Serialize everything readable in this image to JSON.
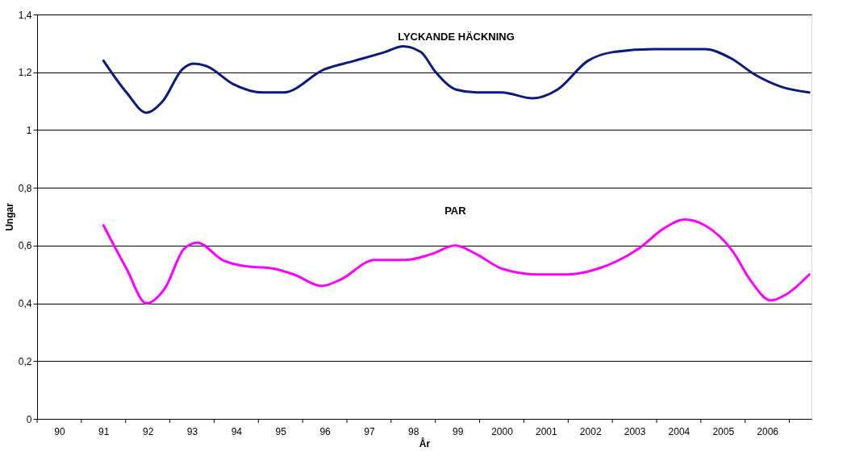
{
  "chart_data": {
    "type": "line",
    "xlabel": "År",
    "ylabel": "Ungar",
    "xlim": [
      1989.5,
      2007
    ],
    "ylim": [
      0,
      1.4
    ],
    "xticks": [
      {
        "value": 1989.5,
        "label": null
      },
      {
        "value": 1990,
        "label": "90"
      },
      {
        "value": 1990.5,
        "label": null
      },
      {
        "value": 1991,
        "label": "91"
      },
      {
        "value": 1991.5,
        "label": null
      },
      {
        "value": 1992,
        "label": "92"
      },
      {
        "value": 1992.5,
        "label": null
      },
      {
        "value": 1993,
        "label": "93"
      },
      {
        "value": 1993.5,
        "label": null
      },
      {
        "value": 1994,
        "label": "94"
      },
      {
        "value": 1994.5,
        "label": null
      },
      {
        "value": 1995,
        "label": "95"
      },
      {
        "value": 1995.5,
        "label": null
      },
      {
        "value": 1996,
        "label": "96"
      },
      {
        "value": 1996.5,
        "label": null
      },
      {
        "value": 1997,
        "label": "97"
      },
      {
        "value": 1997.5,
        "label": null
      },
      {
        "value": 1998,
        "label": "98"
      },
      {
        "value": 1998.5,
        "label": null
      },
      {
        "value": 1999,
        "label": "99"
      },
      {
        "value": 1999.5,
        "label": null
      },
      2000,
      {
        "value": 2000.5,
        "label": null
      },
      2001,
      {
        "value": 2001.5,
        "label": null
      },
      2002,
      {
        "value": 2002.5,
        "label": null
      },
      2003,
      {
        "value": 2003.5,
        "label": null
      },
      2004,
      {
        "value": 2004.5,
        "label": null
      },
      2005,
      {
        "value": 2005.5,
        "label": null
      },
      2006,
      {
        "value": 2006.5,
        "label": null
      }
    ],
    "yticks": [
      0,
      {
        "value": 0.2,
        "label": "0,2"
      },
      {
        "value": 0.4,
        "label": "0,4"
      },
      {
        "value": 0.6,
        "label": "0,6"
      },
      {
        "value": 0.8,
        "label": "0,8"
      },
      1,
      {
        "value": 1.2,
        "label": "1,2"
      },
      {
        "value": 1.4,
        "label": "1,4"
      }
    ],
    "grid": "y",
    "legend": false,
    "marker": "none",
    "line_style": "solid",
    "series": [
      {
        "name": "LYCKANDE HÄCKNING",
        "color": "#0a1a7a",
        "x": [
          1991.0,
          1991.52,
          1991.97,
          1992.34,
          1992.78,
          1993.03,
          1993.35,
          1993.92,
          1994.61,
          1995.07,
          1995.99,
          1996.68,
          1997.36,
          1997.77,
          1998.17,
          1998.51,
          1998.97,
          1999.43,
          2000.0,
          2000.69,
          2001.26,
          2001.95,
          2002.52,
          2003.44,
          2004.59,
          2005.16,
          2005.74,
          2006.31,
          2006.95
        ],
        "values": [
          1.24,
          1.13,
          1.06,
          1.1,
          1.21,
          1.23,
          1.22,
          1.16,
          1.13,
          1.13,
          1.21,
          1.24,
          1.27,
          1.29,
          1.27,
          1.2,
          1.14,
          1.13,
          1.13,
          1.11,
          1.14,
          1.24,
          1.27,
          1.28,
          1.28,
          1.25,
          1.19,
          1.15,
          1.13
        ]
      },
      {
        "name": "PAR",
        "color": "#ff00ff",
        "x": [
          1991.0,
          1991.52,
          1991.97,
          1992.38,
          1992.83,
          1993.12,
          1993.69,
          1994.15,
          1994.84,
          1995.3,
          1995.93,
          1996.33,
          1997.13,
          1997.82,
          1998.4,
          1998.95,
          1999.43,
          2000.0,
          2000.8,
          2001.49,
          2002.18,
          2003.1,
          2003.67,
          2004.13,
          2004.59,
          2005.22,
          2005.62,
          2006.08,
          2006.42,
          2006.95
        ],
        "values": [
          0.67,
          0.52,
          0.4,
          0.45,
          0.59,
          0.61,
          0.55,
          0.53,
          0.52,
          0.5,
          0.46,
          0.48,
          0.55,
          0.55,
          0.57,
          0.6,
          0.57,
          0.52,
          0.5,
          0.5,
          0.52,
          0.59,
          0.66,
          0.69,
          0.67,
          0.58,
          0.48,
          0.41,
          0.43,
          0.5
        ]
      }
    ]
  }
}
